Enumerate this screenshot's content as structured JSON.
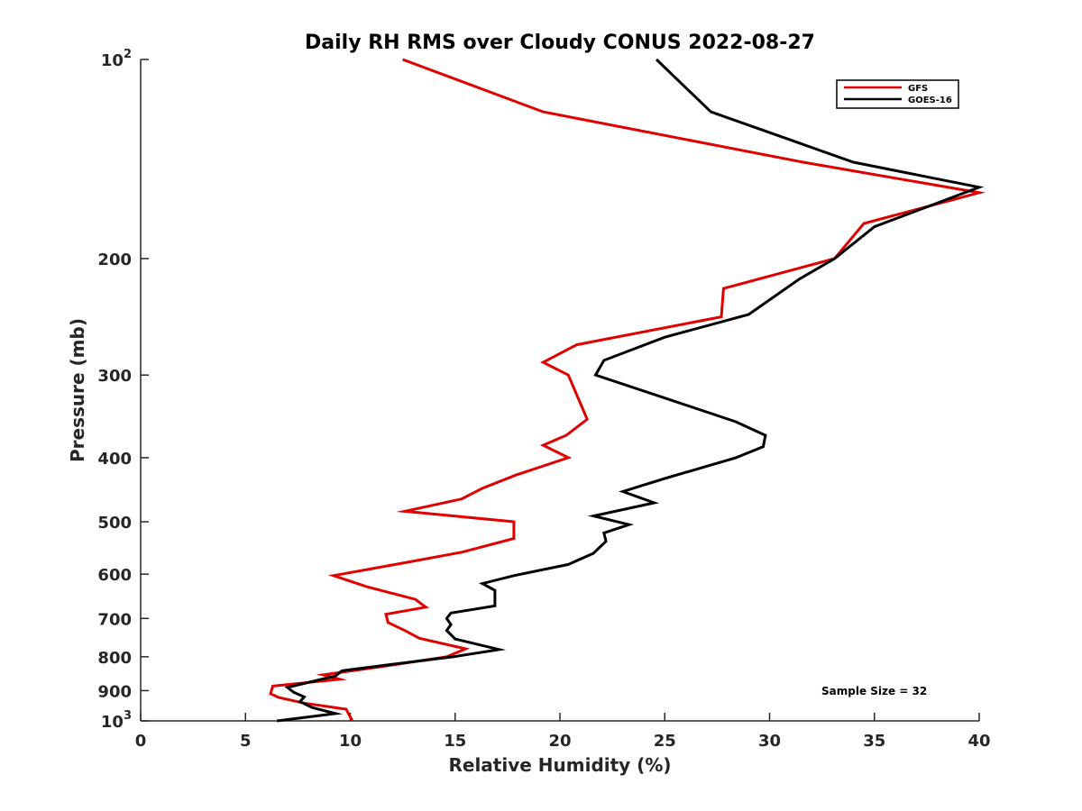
{
  "chart_data": {
    "type": "line",
    "title": "Daily RH RMS over Cloudy CONUS 2022-08-27",
    "xlabel": "Relative Humidity (%)",
    "ylabel": "Pressure (mb)",
    "xlim": [
      0,
      40
    ],
    "ylim": [
      100,
      1000
    ],
    "yscale": "log",
    "y_reversed": true,
    "grid": false,
    "legend_position": "top-right",
    "x_ticks": [
      "0",
      "5",
      "10",
      "15",
      "20",
      "25",
      "30",
      "35",
      "40"
    ],
    "x_tick_values": [
      0,
      5,
      10,
      15,
      20,
      25,
      30,
      35,
      40
    ],
    "y_ticks": [
      {
        "value": 100,
        "base": "10",
        "exp": "2"
      },
      {
        "value": 200,
        "label": "200"
      },
      {
        "value": 300,
        "label": "300"
      },
      {
        "value": 400,
        "label": "400"
      },
      {
        "value": 500,
        "label": "500"
      },
      {
        "value": 600,
        "label": "600"
      },
      {
        "value": 700,
        "label": "700"
      },
      {
        "value": 800,
        "label": "800"
      },
      {
        "value": 900,
        "label": "900"
      },
      {
        "value": 1000,
        "base": "10",
        "exp": "3"
      }
    ],
    "series": [
      {
        "name": "GFS",
        "color": "#e00000",
        "points": [
          [
            12.5,
            100
          ],
          [
            19.2,
            120
          ],
          [
            31.6,
            143
          ],
          [
            40.0,
            159
          ],
          [
            34.5,
            177
          ],
          [
            33.1,
            200
          ],
          [
            27.8,
            222
          ],
          [
            27.7,
            245
          ],
          [
            20.8,
            270
          ],
          [
            19.2,
            287
          ],
          [
            20.4,
            300
          ],
          [
            21.3,
            350
          ],
          [
            20.3,
            370
          ],
          [
            19.2,
            383
          ],
          [
            20.4,
            400
          ],
          [
            17.9,
            425
          ],
          [
            16.3,
            445
          ],
          [
            15.3,
            462
          ],
          [
            12.6,
            482
          ],
          [
            17.8,
            500
          ],
          [
            17.8,
            530
          ],
          [
            15.3,
            556
          ],
          [
            12.8,
            575
          ],
          [
            9.2,
            603
          ],
          [
            10.8,
            627
          ],
          [
            13.1,
            655
          ],
          [
            13.6,
            673
          ],
          [
            11.7,
            690
          ],
          [
            11.8,
            710
          ],
          [
            12.6,
            730
          ],
          [
            13.3,
            750
          ],
          [
            15.5,
            778
          ],
          [
            14.6,
            800
          ],
          [
            11.6,
            827
          ],
          [
            8.7,
            852
          ],
          [
            9.5,
            865
          ],
          [
            6.3,
            886
          ],
          [
            6.2,
            910
          ],
          [
            6.6,
            922
          ],
          [
            7.8,
            940
          ],
          [
            9.8,
            960
          ],
          [
            10.1,
            1000
          ]
        ]
      },
      {
        "name": "GOES-16",
        "color": "#000000",
        "points": [
          [
            24.6,
            100
          ],
          [
            27.2,
            120
          ],
          [
            34.0,
            143
          ],
          [
            40.0,
            156
          ],
          [
            35.0,
            179
          ],
          [
            33.1,
            200
          ],
          [
            31.4,
            215
          ],
          [
            29.0,
            243
          ],
          [
            25.0,
            263
          ],
          [
            22.1,
            285
          ],
          [
            21.7,
            300
          ],
          [
            25.0,
            325
          ],
          [
            28.4,
            353
          ],
          [
            29.8,
            370
          ],
          [
            29.7,
            385
          ],
          [
            28.4,
            400
          ],
          [
            25.0,
            430
          ],
          [
            23.0,
            450
          ],
          [
            24.5,
            468
          ],
          [
            21.6,
            490
          ],
          [
            23.3,
            505
          ],
          [
            22.1,
            520
          ],
          [
            22.2,
            535
          ],
          [
            21.6,
            558
          ],
          [
            20.4,
            580
          ],
          [
            17.8,
            603
          ],
          [
            16.3,
            620
          ],
          [
            16.9,
            635
          ],
          [
            16.9,
            670
          ],
          [
            14.8,
            687
          ],
          [
            14.6,
            700
          ],
          [
            14.8,
            715
          ],
          [
            14.6,
            730
          ],
          [
            15.0,
            752
          ],
          [
            17.1,
            780
          ],
          [
            14.9,
            800
          ],
          [
            11.9,
            822
          ],
          [
            9.6,
            840
          ],
          [
            9.3,
            855
          ],
          [
            7.0,
            890
          ],
          [
            7.3,
            905
          ],
          [
            7.8,
            920
          ],
          [
            7.6,
            935
          ],
          [
            8.2,
            955
          ],
          [
            9.3,
            975
          ],
          [
            6.5,
            1000
          ]
        ]
      }
    ],
    "annotations": [
      "Sample Size = 32"
    ]
  }
}
